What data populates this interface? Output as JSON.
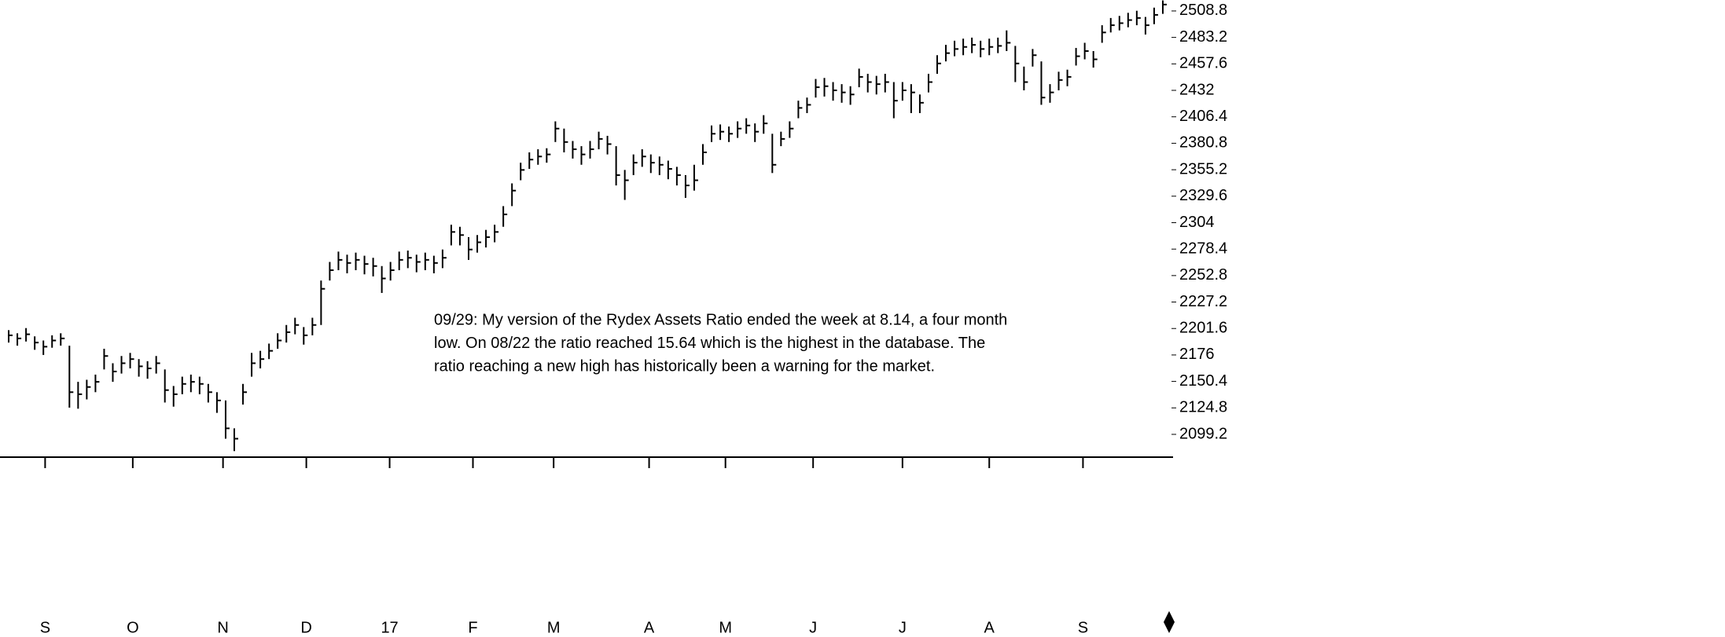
{
  "chart_data": {
    "type": "ohlc",
    "color": "#000000",
    "annotation": [
      "09/29: My version of the Rydex Assets Ratio ended the week at 8.14, a four month",
      "low. On 08/22 the ratio reached 15.64 which is the highest in the database. The",
      "ratio reaching a new high has historically been a warning for the market."
    ],
    "ylim": [
      2080.2,
      2519.4
    ],
    "yticks": [
      2099.2,
      2124.8,
      2150.4,
      2176,
      2201.6,
      2227.2,
      2252.8,
      2278.4,
      2304,
      2329.6,
      2355.2,
      2380.8,
      2406.4,
      2432,
      2457.6,
      2483.2,
      2508.8
    ],
    "xlim": [
      -1,
      134
    ],
    "xticks": [
      {
        "value": 4.2,
        "label": "S"
      },
      {
        "value": 14.3,
        "label": "O"
      },
      {
        "value": 24.7,
        "label": "N"
      },
      {
        "value": 34.3,
        "label": "D"
      },
      {
        "value": 43.9,
        "label": "17"
      },
      {
        "value": 53.5,
        "label": "F"
      },
      {
        "value": 62.8,
        "label": "M"
      },
      {
        "value": 73.8,
        "label": "A"
      },
      {
        "value": 82.6,
        "label": "M"
      },
      {
        "value": 92.7,
        "label": "J"
      },
      {
        "value": 103,
        "label": "J"
      },
      {
        "value": 113,
        "label": "A"
      },
      {
        "value": 123.8,
        "label": "S"
      }
    ],
    "close": [
      2195,
      2192,
      2196,
      2188,
      2184,
      2190,
      2192,
      2140,
      2138,
      2145,
      2150,
      2175,
      2160,
      2168,
      2172,
      2165,
      2163,
      2168,
      2142,
      2138,
      2148,
      2150,
      2148,
      2140,
      2132,
      2105,
      2095,
      2140,
      2168,
      2172,
      2180,
      2190,
      2198,
      2205,
      2195,
      2205,
      2240,
      2258,
      2268,
      2265,
      2268,
      2264,
      2262,
      2250,
      2258,
      2268,
      2270,
      2266,
      2268,
      2265,
      2270,
      2295,
      2292,
      2278,
      2285,
      2290,
      2295,
      2312,
      2335,
      2355,
      2365,
      2368,
      2370,
      2395,
      2382,
      2375,
      2370,
      2375,
      2385,
      2380,
      2350,
      2345,
      2362,
      2368,
      2362,
      2360,
      2356,
      2350,
      2340,
      2345,
      2372,
      2390,
      2392,
      2390,
      2395,
      2398,
      2392,
      2400,
      2360,
      2385,
      2395,
      2415,
      2418,
      2435,
      2436,
      2432,
      2430,
      2428,
      2445,
      2440,
      2438,
      2440,
      2422,
      2432,
      2430,
      2420,
      2440,
      2458,
      2468,
      2472,
      2474,
      2476,
      2472,
      2474,
      2475,
      2478,
      2458,
      2440,
      2466,
      2425,
      2430,
      2442,
      2445,
      2465,
      2470,
      2462,
      2488,
      2495,
      2497,
      2500,
      2502,
      2495,
      2505,
      2515
    ],
    "high": [
      2200,
      2197,
      2202,
      2194,
      2190,
      2195,
      2197,
      2185,
      2150,
      2152,
      2157,
      2182,
      2168,
      2175,
      2178,
      2172,
      2170,
      2175,
      2162,
      2146,
      2155,
      2157,
      2155,
      2148,
      2140,
      2132,
      2105,
      2148,
      2178,
      2180,
      2187,
      2197,
      2205,
      2212,
      2203,
      2212,
      2248,
      2266,
      2276,
      2273,
      2275,
      2272,
      2270,
      2262,
      2266,
      2276,
      2277,
      2273,
      2275,
      2272,
      2278,
      2302,
      2300,
      2290,
      2292,
      2297,
      2302,
      2320,
      2342,
      2362,
      2372,
      2375,
      2376,
      2402,
      2395,
      2383,
      2378,
      2383,
      2392,
      2388,
      2378,
      2355,
      2370,
      2375,
      2370,
      2368,
      2364,
      2358,
      2350,
      2360,
      2380,
      2398,
      2399,
      2397,
      2402,
      2405,
      2400,
      2408,
      2390,
      2392,
      2402,
      2422,
      2425,
      2443,
      2444,
      2440,
      2438,
      2436,
      2453,
      2448,
      2446,
      2448,
      2440,
      2440,
      2438,
      2428,
      2448,
      2466,
      2476,
      2480,
      2482,
      2483,
      2480,
      2482,
      2483,
      2490,
      2475,
      2455,
      2472,
      2460,
      2438,
      2450,
      2452,
      2473,
      2478,
      2470,
      2495,
      2502,
      2504,
      2507,
      2509,
      2503,
      2512,
      2519
    ],
    "low": [
      2188,
      2185,
      2189,
      2181,
      2176,
      2183,
      2185,
      2125,
      2124,
      2133,
      2140,
      2162,
      2150,
      2158,
      2163,
      2155,
      2153,
      2158,
      2130,
      2126,
      2138,
      2140,
      2138,
      2130,
      2120,
      2095,
      2083,
      2128,
      2155,
      2163,
      2172,
      2182,
      2188,
      2196,
      2186,
      2195,
      2205,
      2248,
      2258,
      2255,
      2258,
      2254,
      2252,
      2236,
      2248,
      2258,
      2260,
      2256,
      2258,
      2255,
      2260,
      2282,
      2282,
      2268,
      2275,
      2280,
      2285,
      2300,
      2320,
      2345,
      2356,
      2360,
      2362,
      2382,
      2372,
      2366,
      2360,
      2366,
      2375,
      2370,
      2340,
      2326,
      2350,
      2358,
      2352,
      2350,
      2346,
      2340,
      2328,
      2335,
      2360,
      2382,
      2384,
      2382,
      2386,
      2390,
      2382,
      2390,
      2352,
      2378,
      2386,
      2405,
      2410,
      2425,
      2426,
      2422,
      2420,
      2418,
      2435,
      2430,
      2428,
      2430,
      2405,
      2422,
      2410,
      2410,
      2430,
      2448,
      2460,
      2465,
      2466,
      2468,
      2464,
      2466,
      2468,
      2470,
      2440,
      2432,
      2455,
      2418,
      2420,
      2432,
      2436,
      2456,
      2462,
      2454,
      2478,
      2488,
      2490,
      2493,
      2495,
      2486,
      2496,
      2506
    ]
  }
}
